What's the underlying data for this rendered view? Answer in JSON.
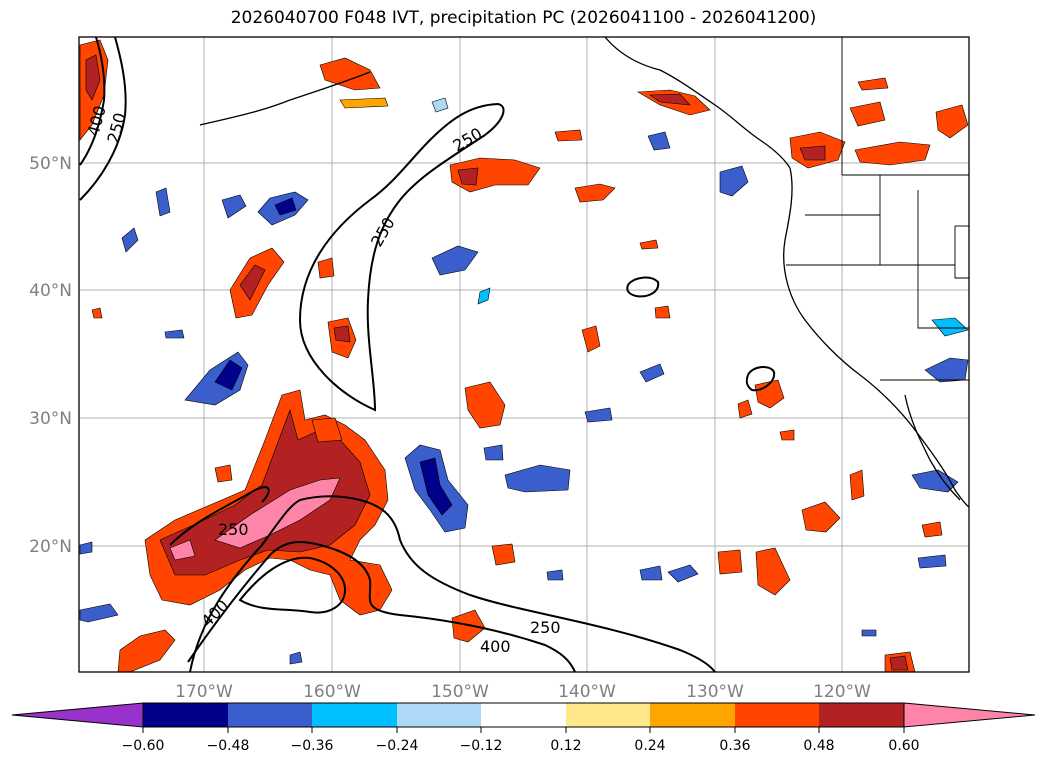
{
  "title": "2026040700 F048 IVT, precipitation PC (2026041100 - 2026041200)",
  "axes": {
    "lat_labels": [
      "50°N",
      "40°N",
      "30°N",
      "20°N"
    ],
    "lon_labels": [
      "170°W",
      "160°W",
      "150°W",
      "140°W",
      "130°W",
      "120°W"
    ]
  },
  "colorbar": {
    "ticks": [
      "−0.60",
      "−0.48",
      "−0.36",
      "−0.24",
      "−0.12",
      "0.12",
      "0.24",
      "0.36",
      "0.48",
      "0.60"
    ],
    "colors": [
      "#9932CC",
      "#00008B",
      "#3A5FCD",
      "#00BFFF",
      "#ADD8F7",
      "#FFFFFF",
      "#FFE88C",
      "#FFA500",
      "#FF4500",
      "#B22222",
      "#FF85A8"
    ]
  },
  "contour_labels": [
    "400",
    "250",
    "250",
    "250",
    "250",
    "400",
    "250",
    "400"
  ],
  "palette": {
    "land_line": "#000000",
    "grid": "#b0b0b0",
    "contour": "#000000"
  }
}
